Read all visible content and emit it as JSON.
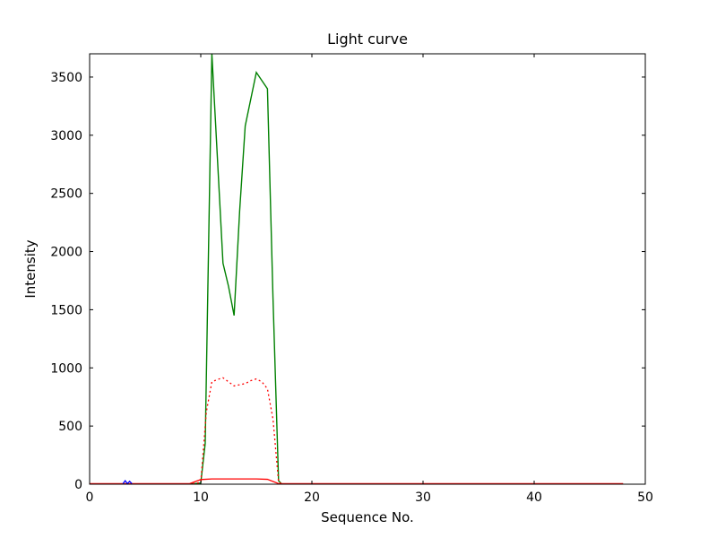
{
  "chart_data": {
    "type": "line",
    "title": "Light curve",
    "xlabel": "Sequence No.",
    "ylabel": "Intensity",
    "xlim": [
      0,
      50
    ],
    "ylim": [
      0,
      3700
    ],
    "x_ticks": [
      0,
      10,
      20,
      30,
      40,
      50
    ],
    "y_ticks": [
      0,
      500,
      1000,
      1500,
      2000,
      2500,
      3000,
      3500
    ],
    "grid": false,
    "legend_position": "none",
    "axis_color": "#000000",
    "background_color": "#ffffff",
    "series": [
      {
        "name": "green-solid",
        "color": "#008000",
        "style": "solid",
        "width": 1.4,
        "points": [
          [
            0,
            0
          ],
          [
            9,
            0
          ],
          [
            10,
            10
          ],
          [
            10.4,
            350
          ],
          [
            11,
            3700
          ],
          [
            12,
            1900
          ],
          [
            12.5,
            1700
          ],
          [
            13,
            1450
          ],
          [
            13.5,
            2350
          ],
          [
            14,
            3080
          ],
          [
            15,
            3540
          ],
          [
            15.5,
            3470
          ],
          [
            16,
            3400
          ],
          [
            16.5,
            1600
          ],
          [
            17,
            30
          ],
          [
            17.3,
            0
          ],
          [
            48,
            0
          ]
        ]
      },
      {
        "name": "red-dotted",
        "color": "#ff0000",
        "style": "dotted",
        "width": 1.3,
        "points": [
          [
            0,
            0
          ],
          [
            9,
            0
          ],
          [
            10,
            15
          ],
          [
            10.5,
            620
          ],
          [
            11,
            880
          ],
          [
            11.5,
            900
          ],
          [
            12,
            915
          ],
          [
            12.5,
            880
          ],
          [
            13,
            845
          ],
          [
            13.5,
            855
          ],
          [
            14,
            865
          ],
          [
            14.5,
            890
          ],
          [
            15,
            905
          ],
          [
            15.5,
            880
          ],
          [
            16,
            820
          ],
          [
            16.5,
            560
          ],
          [
            17,
            20
          ],
          [
            17.3,
            0
          ],
          [
            48,
            0
          ]
        ]
      },
      {
        "name": "red-solid",
        "color": "#ff0000",
        "style": "solid",
        "width": 1.3,
        "points": [
          [
            0,
            5
          ],
          [
            9,
            5
          ],
          [
            10,
            40
          ],
          [
            11,
            45
          ],
          [
            15,
            45
          ],
          [
            16,
            42
          ],
          [
            17,
            5
          ],
          [
            48,
            5
          ]
        ]
      },
      {
        "name": "blue-blip",
        "color": "#0000ff",
        "style": "solid",
        "width": 1.3,
        "points": [
          [
            3.0,
            5
          ],
          [
            3.2,
            30
          ],
          [
            3.4,
            5
          ],
          [
            3.6,
            25
          ],
          [
            3.8,
            5
          ]
        ]
      }
    ]
  }
}
